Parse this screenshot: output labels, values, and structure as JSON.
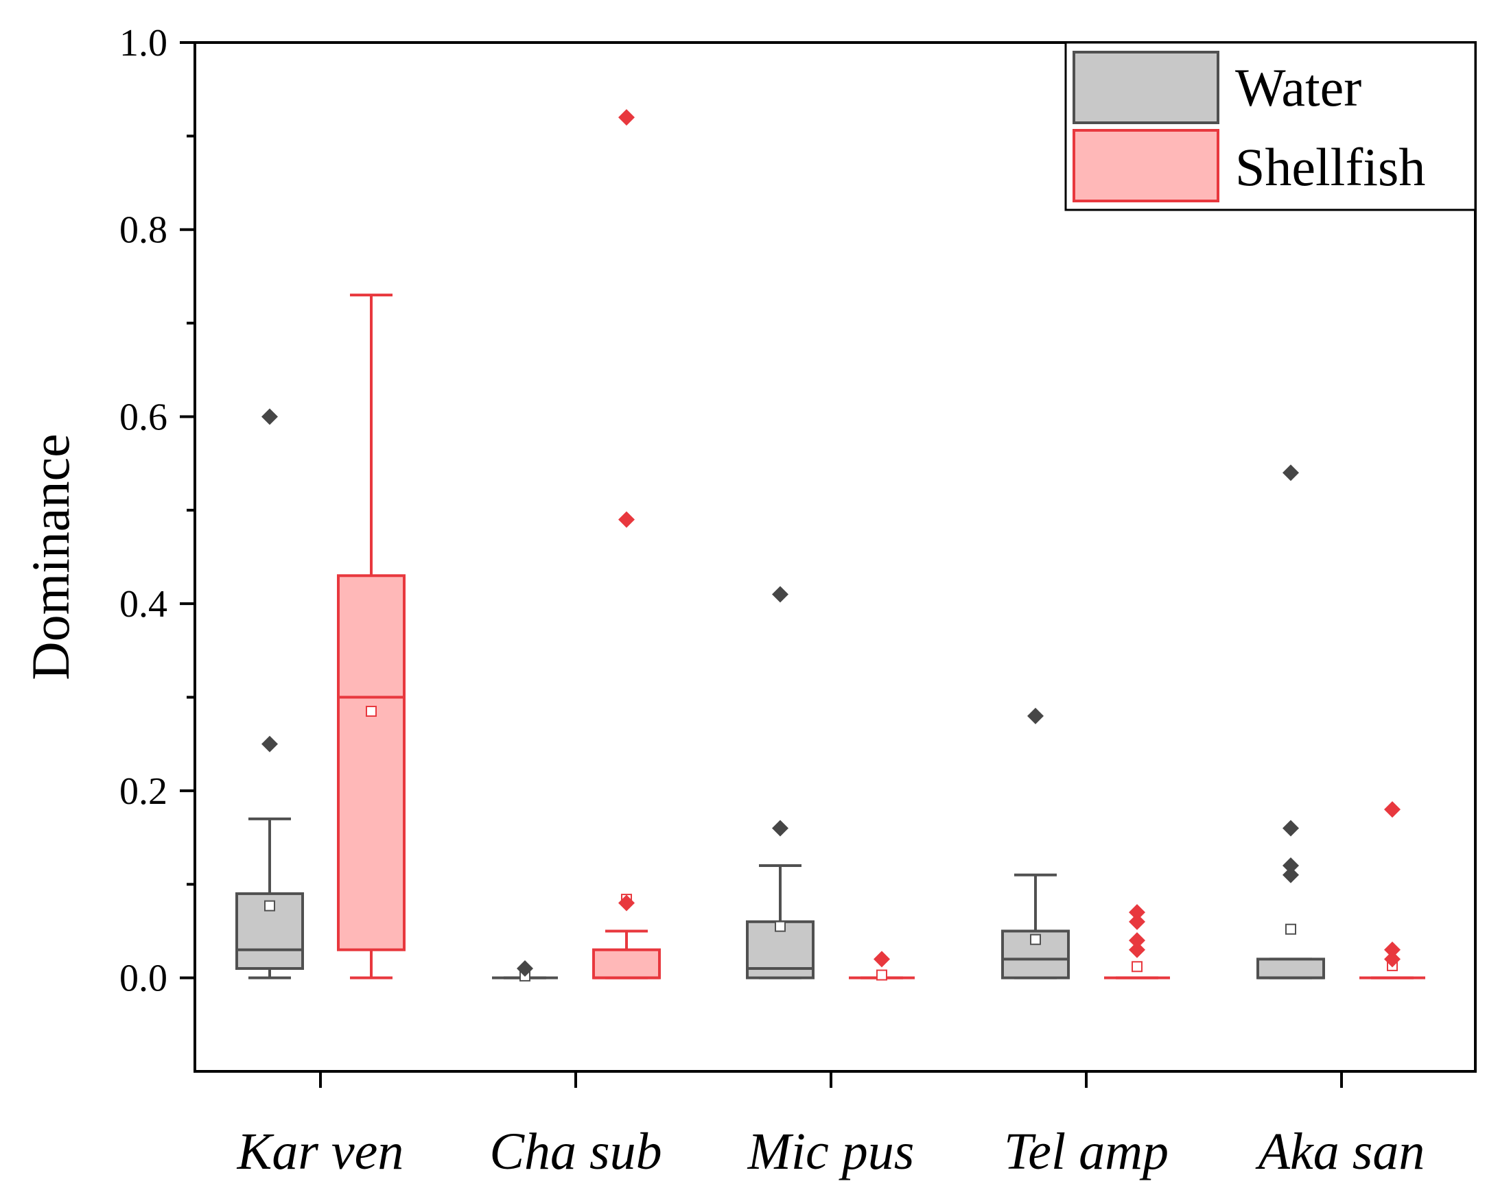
{
  "chart_data": {
    "type": "box",
    "title": "",
    "xlabel": "",
    "ylabel": "Dominance",
    "ylim": [
      -0.1,
      1.0
    ],
    "yticks": [
      "0.0",
      "0.2",
      "0.4",
      "0.6",
      "0.8",
      "1.0"
    ],
    "grid": false,
    "legend_position": "top-right",
    "categories": [
      "Kar ven",
      "Cha sub",
      "Mic pus",
      "Tel amp",
      "Aka san"
    ],
    "series": [
      {
        "name": "Water",
        "colors": {
          "fill": "#c8c8c8",
          "stroke": "#505050",
          "outlier": "#464646"
        },
        "boxes": [
          {
            "q1": 0.01,
            "median": 0.03,
            "q3": 0.09,
            "whisker_low": 0.0,
            "whisker_high": 0.17,
            "mean": 0.077,
            "outliers": [
              0.6,
              0.25
            ]
          },
          {
            "q1": 0.0,
            "median": 0.0,
            "q3": 0.0,
            "whisker_low": 0.0,
            "whisker_high": 0.0,
            "mean": 0.002,
            "outliers": [
              0.01
            ]
          },
          {
            "q1": 0.0,
            "median": 0.01,
            "q3": 0.06,
            "whisker_low": 0.0,
            "whisker_high": 0.12,
            "mean": 0.055,
            "outliers": [
              0.41,
              0.16
            ]
          },
          {
            "q1": 0.0,
            "median": 0.02,
            "q3": 0.05,
            "whisker_low": 0.0,
            "whisker_high": 0.11,
            "mean": 0.041,
            "outliers": [
              0.28
            ]
          },
          {
            "q1": 0.0,
            "median": 0.0,
            "q3": 0.02,
            "whisker_low": 0.0,
            "whisker_high": 0.02,
            "mean": 0.052,
            "outliers": [
              0.54,
              0.16,
              0.12,
              0.11
            ]
          }
        ]
      },
      {
        "name": "Shellfish",
        "colors": {
          "fill": "#ffb8b8",
          "stroke": "#e8383e",
          "outlier": "#e8383e"
        },
        "boxes": [
          {
            "q1": 0.03,
            "median": 0.3,
            "q3": 0.43,
            "whisker_low": 0.0,
            "whisker_high": 0.73,
            "mean": 0.285,
            "outliers": []
          },
          {
            "q1": 0.0,
            "median": 0.0,
            "q3": 0.03,
            "whisker_low": 0.0,
            "whisker_high": 0.05,
            "mean": 0.084,
            "outliers": [
              0.92,
              0.49,
              0.08
            ]
          },
          {
            "q1": 0.0,
            "median": 0.0,
            "q3": 0.0,
            "whisker_low": 0.0,
            "whisker_high": 0.0,
            "mean": 0.003,
            "outliers": [
              0.02
            ]
          },
          {
            "q1": 0.0,
            "median": 0.0,
            "q3": 0.0,
            "whisker_low": 0.0,
            "whisker_high": 0.0,
            "mean": 0.012,
            "outliers": [
              0.07,
              0.06,
              0.04,
              0.03
            ]
          },
          {
            "q1": 0.0,
            "median": 0.0,
            "q3": 0.0,
            "whisker_low": 0.0,
            "whisker_high": 0.0,
            "mean": 0.013,
            "outliers": [
              0.18,
              0.03,
              0.02
            ]
          }
        ]
      }
    ]
  }
}
